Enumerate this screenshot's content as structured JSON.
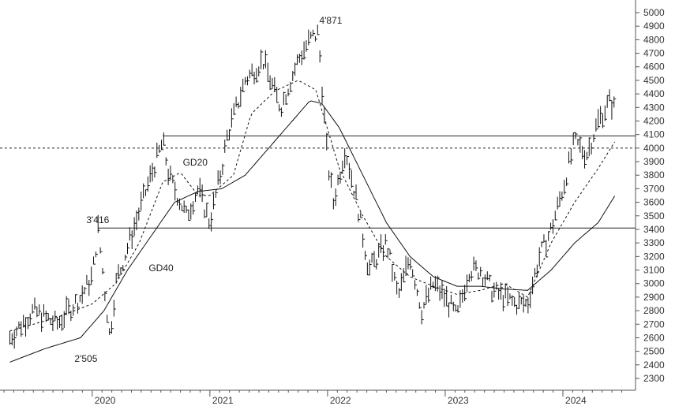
{
  "chart_data": {
    "type": "line",
    "title": "",
    "xlabel": "",
    "ylabel": "",
    "ylim": [
      2200,
      5100
    ],
    "y_ticks": [
      2300,
      2400,
      2500,
      2600,
      2700,
      2800,
      2900,
      3000,
      3100,
      3200,
      3300,
      3400,
      3500,
      3600,
      3700,
      3800,
      3900,
      4000,
      4100,
      4200,
      4300,
      4400,
      4500,
      4600,
      4700,
      4800,
      4900,
      5000
    ],
    "y_axis_side": "right",
    "x_ticks": [
      "2020",
      "2021",
      "2022",
      "2023",
      "2024"
    ],
    "grid": false,
    "legend": "none",
    "price_series": {
      "name": "",
      "style": "bar (high-low)",
      "x": [
        2019.3,
        2019.5,
        2019.7,
        2019.9,
        2020.0,
        2020.05,
        2020.15,
        2020.2,
        2020.35,
        2020.5,
        2020.6,
        2020.65,
        2020.8,
        2020.9,
        2021.0,
        2021.1,
        2021.15,
        2021.3,
        2021.45,
        2021.6,
        2021.75,
        2021.85,
        2021.92,
        2022.0,
        2022.05,
        2022.15,
        2022.25,
        2022.35,
        2022.5,
        2022.6,
        2022.7,
        2022.8,
        2022.9,
        2023.0,
        2023.1,
        2023.2,
        2023.3,
        2023.4,
        2023.5,
        2023.6,
        2023.7,
        2023.8,
        2023.9,
        2024.0,
        2024.1,
        2024.2,
        2024.3,
        2024.4,
        2024.45
      ],
      "y": [
        2600,
        2800,
        2700,
        2900,
        3050,
        3400,
        2600,
        3000,
        3400,
        3800,
        4050,
        3800,
        3500,
        3700,
        3450,
        3850,
        4100,
        4500,
        4650,
        4300,
        4650,
        4800,
        4850,
        3900,
        3600,
        4000,
        3600,
        3100,
        3300,
        2900,
        3200,
        2800,
        3000,
        2900,
        2750,
        3100,
        3100,
        2950,
        2900,
        2850,
        2850,
        3200,
        3400,
        3700,
        4050,
        3950,
        4200,
        4350,
        4280
      ],
      "annotations": [
        "4'871",
        "3'416",
        "2'505"
      ],
      "annotation_values": [
        4871,
        3416,
        2505
      ]
    },
    "moving_averages": [
      {
        "name": "GD20",
        "style": "dashed",
        "x": [
          2019.3,
          2019.7,
          2020.0,
          2020.2,
          2020.4,
          2020.6,
          2020.75,
          2020.9,
          2021.0,
          2021.2,
          2021.35,
          2021.55,
          2021.75,
          2021.9,
          2022.1,
          2022.3,
          2022.5,
          2022.7,
          2022.9,
          2023.1,
          2023.3,
          2023.5,
          2023.7,
          2023.9,
          2024.1,
          2024.3,
          2024.45
        ],
        "y": [
          2650,
          2750,
          2850,
          3000,
          3300,
          3750,
          3820,
          3650,
          3650,
          3800,
          4250,
          4420,
          4500,
          4430,
          3850,
          3500,
          3200,
          3050,
          2980,
          2920,
          2950,
          3000,
          2900,
          3300,
          3600,
          3850,
          4060
        ]
      },
      {
        "name": "GD40",
        "style": "solid",
        "x": [
          2019.3,
          2019.6,
          2019.9,
          2020.1,
          2020.3,
          2020.5,
          2020.7,
          2020.9,
          2021.1,
          2021.3,
          2021.5,
          2021.7,
          2021.85,
          2021.95,
          2022.1,
          2022.3,
          2022.5,
          2022.7,
          2022.9,
          2023.1,
          2023.3,
          2023.5,
          2023.7,
          2023.9,
          2024.1,
          2024.3,
          2024.45
        ],
        "y": [
          2420,
          2520,
          2600,
          2800,
          3100,
          3350,
          3600,
          3680,
          3700,
          3800,
          4000,
          4200,
          4350,
          4330,
          4150,
          3800,
          3450,
          3200,
          3050,
          2980,
          2980,
          2960,
          2950,
          3100,
          3300,
          3450,
          3660
        ]
      }
    ],
    "horizontal_lines": [
      {
        "value": 4090,
        "style": "solid"
      },
      {
        "value": 4000,
        "style": "dashed"
      },
      {
        "value": 3410,
        "style": "solid"
      }
    ]
  }
}
